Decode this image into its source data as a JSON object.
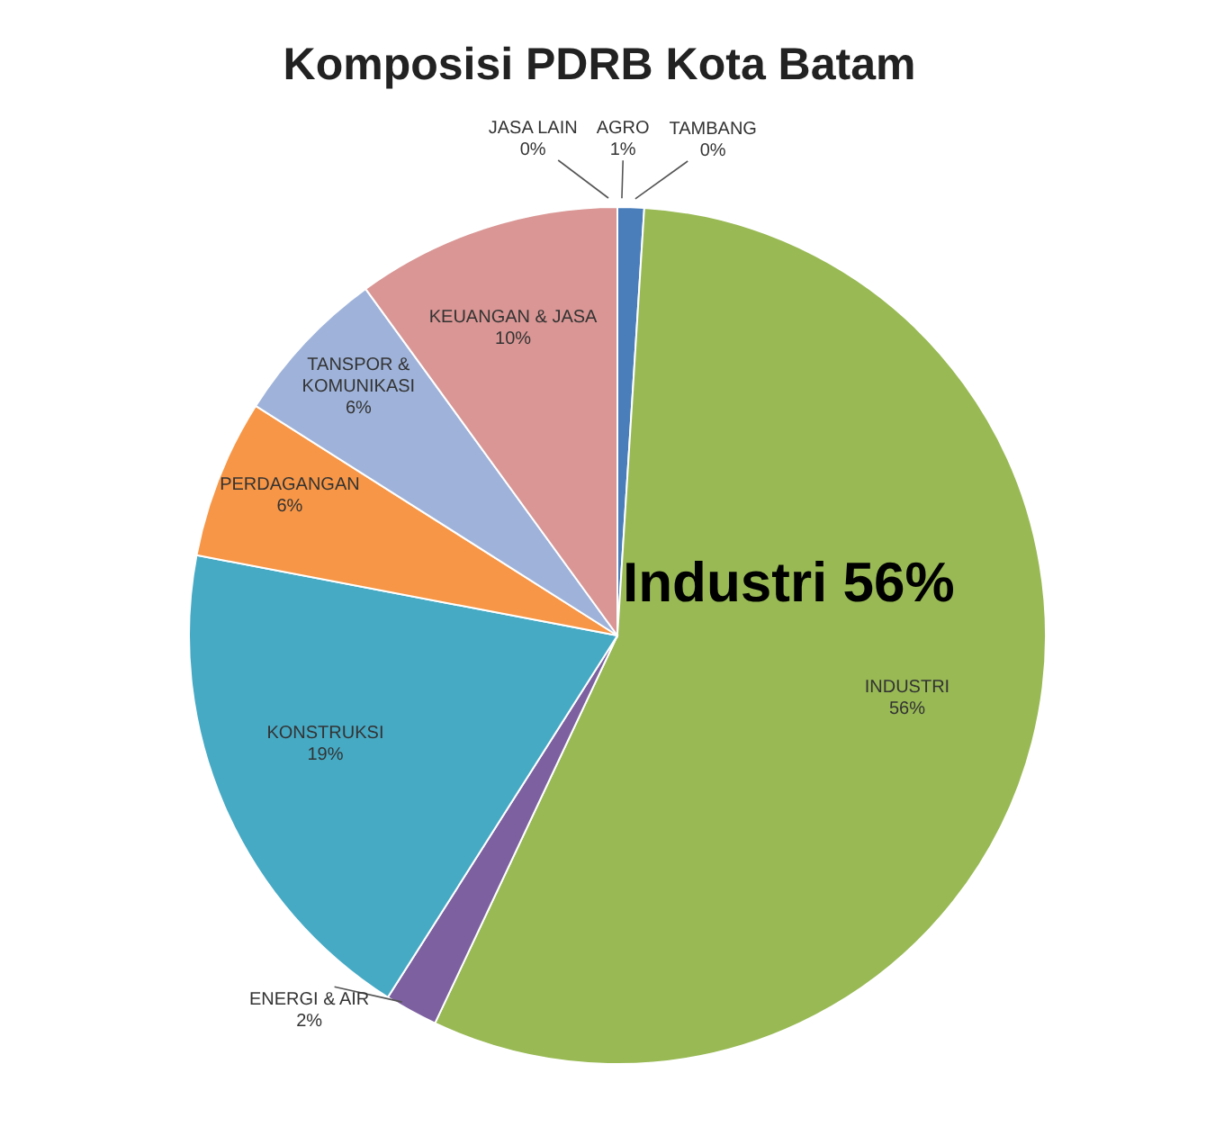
{
  "chart_data": {
    "type": "pie",
    "title": "Komposisi PDRB Kota Batam",
    "categories": [
      "AGRO",
      "TAMBANG",
      "INDUSTRI",
      "ENERGI & AIR",
      "KONSTRUKSI",
      "PERDAGANGAN",
      "TANSPOR & KOMUNIKASI",
      "KEUANGAN & JASA",
      "JASA LAIN"
    ],
    "values": [
      1,
      0,
      56,
      2,
      19,
      6,
      6,
      10,
      0
    ],
    "value_labels": [
      "1%",
      "0%",
      "56%",
      "2%",
      "19%",
      "6%",
      "6%",
      "10%",
      "0%"
    ],
    "colors": [
      "#4a7ebb",
      "#be4b48",
      "#98b954",
      "#7d60a0",
      "#46aac5",
      "#f79646",
      "#9fb3da",
      "#d99694",
      "#d7e4bd"
    ],
    "annotations": [
      "Industri 56%"
    ],
    "legend": false
  }
}
